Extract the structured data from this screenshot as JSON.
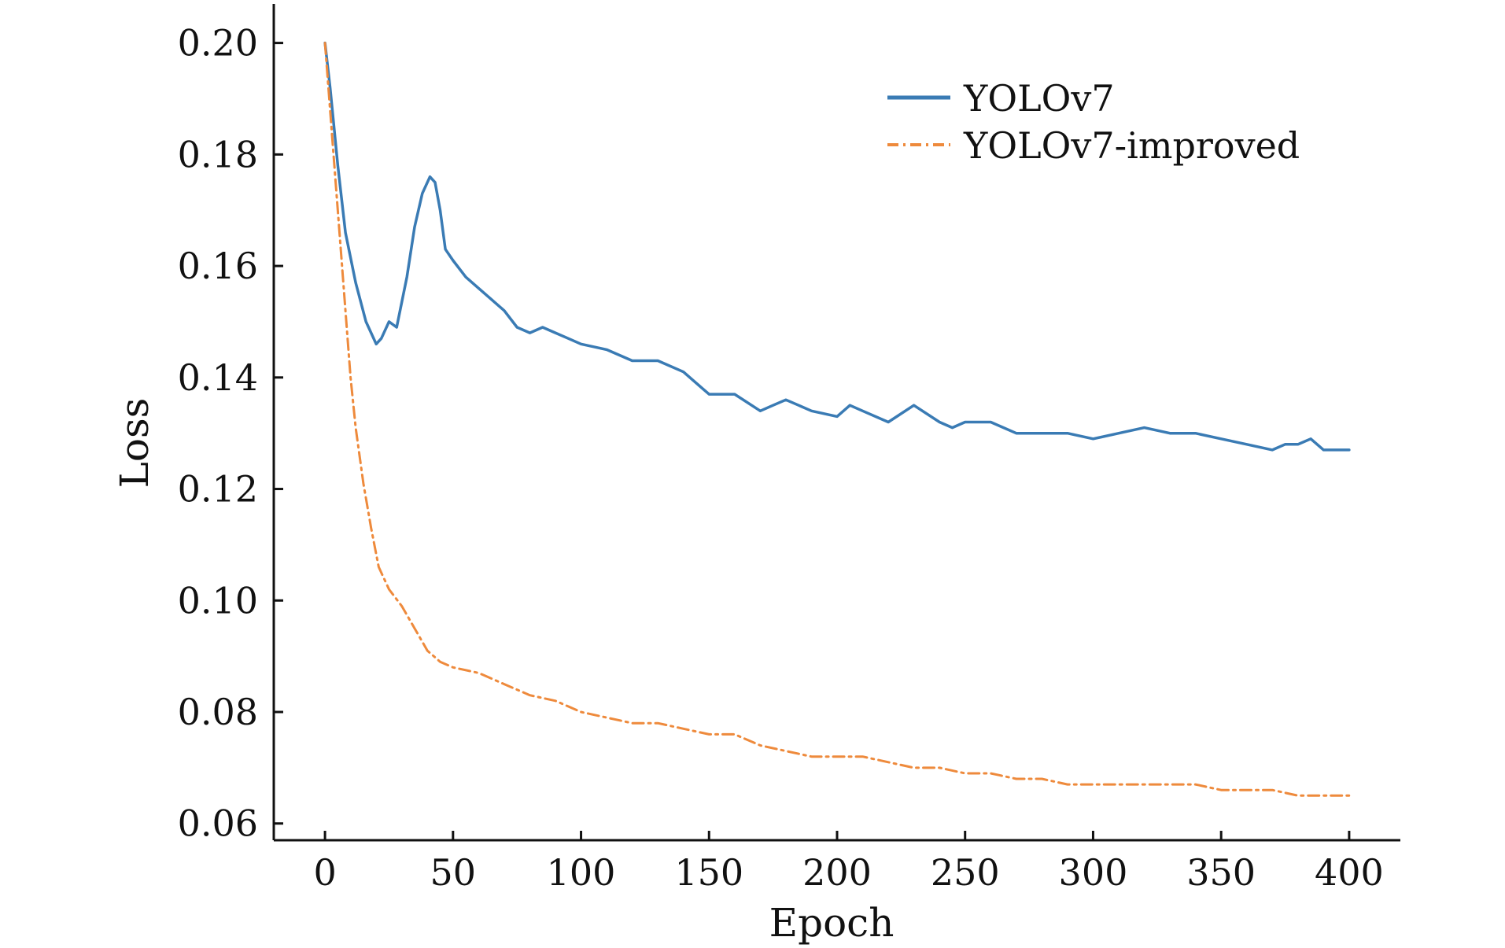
{
  "chart_data": {
    "type": "line",
    "title": "",
    "xlabel": "Epoch",
    "ylabel": "Loss",
    "xlim": [
      -20,
      420
    ],
    "ylim": [
      0.057,
      0.207
    ],
    "xticks": [
      0,
      50,
      100,
      150,
      200,
      250,
      300,
      350,
      400
    ],
    "xtick_labels": [
      "0",
      "50",
      "100",
      "150",
      "200",
      "250",
      "300",
      "350",
      "400"
    ],
    "yticks": [
      0.06,
      0.08,
      0.1,
      0.12,
      0.14,
      0.16,
      0.18,
      0.2
    ],
    "ytick_labels": [
      "0.06",
      "0.08",
      "0.10",
      "0.12",
      "0.14",
      "0.16",
      "0.18",
      "0.20"
    ],
    "grid": false,
    "legend_position": "top-right",
    "series": [
      {
        "name": "YOLOv7",
        "color": "#3a7bb4",
        "style": "solid",
        "x": [
          0,
          2,
          5,
          8,
          12,
          16,
          20,
          22,
          25,
          28,
          32,
          35,
          38,
          41,
          43,
          45,
          47,
          50,
          55,
          60,
          65,
          70,
          75,
          80,
          85,
          90,
          95,
          100,
          110,
          120,
          130,
          140,
          145,
          150,
          160,
          170,
          175,
          180,
          185,
          190,
          200,
          205,
          210,
          220,
          230,
          240,
          245,
          250,
          260,
          270,
          280,
          290,
          300,
          310,
          320,
          330,
          340,
          350,
          360,
          370,
          375,
          380,
          385,
          390,
          395,
          400
        ],
        "y": [
          0.2,
          0.192,
          0.178,
          0.166,
          0.157,
          0.15,
          0.146,
          0.147,
          0.15,
          0.149,
          0.158,
          0.167,
          0.173,
          0.176,
          0.175,
          0.17,
          0.163,
          0.161,
          0.158,
          0.156,
          0.154,
          0.152,
          0.149,
          0.148,
          0.149,
          0.148,
          0.147,
          0.146,
          0.145,
          0.143,
          0.143,
          0.141,
          0.139,
          0.137,
          0.137,
          0.134,
          0.135,
          0.136,
          0.135,
          0.134,
          0.133,
          0.135,
          0.134,
          0.132,
          0.135,
          0.132,
          0.131,
          0.132,
          0.132,
          0.13,
          0.13,
          0.13,
          0.129,
          0.13,
          0.131,
          0.13,
          0.13,
          0.129,
          0.128,
          0.127,
          0.128,
          0.128,
          0.129,
          0.127,
          0.127,
          0.127
        ]
      },
      {
        "name": "YOLOv7-improved",
        "color": "#ee8a3c",
        "style": "dashdot",
        "x": [
          0,
          2,
          4,
          6,
          8,
          10,
          12,
          15,
          18,
          21,
          25,
          30,
          35,
          40,
          45,
          50,
          60,
          70,
          80,
          90,
          100,
          110,
          120,
          130,
          140,
          150,
          160,
          170,
          180,
          190,
          200,
          210,
          220,
          230,
          240,
          250,
          260,
          270,
          280,
          290,
          300,
          310,
          320,
          330,
          340,
          350,
          360,
          370,
          380,
          390,
          400
        ],
        "y": [
          0.2,
          0.188,
          0.176,
          0.164,
          0.152,
          0.14,
          0.131,
          0.121,
          0.113,
          0.106,
          0.102,
          0.099,
          0.095,
          0.091,
          0.089,
          0.088,
          0.087,
          0.085,
          0.083,
          0.082,
          0.08,
          0.079,
          0.078,
          0.078,
          0.077,
          0.076,
          0.076,
          0.074,
          0.073,
          0.072,
          0.072,
          0.072,
          0.071,
          0.07,
          0.07,
          0.069,
          0.069,
          0.068,
          0.068,
          0.067,
          0.067,
          0.067,
          0.067,
          0.067,
          0.067,
          0.066,
          0.066,
          0.066,
          0.065,
          0.065,
          0.065
        ]
      }
    ]
  }
}
